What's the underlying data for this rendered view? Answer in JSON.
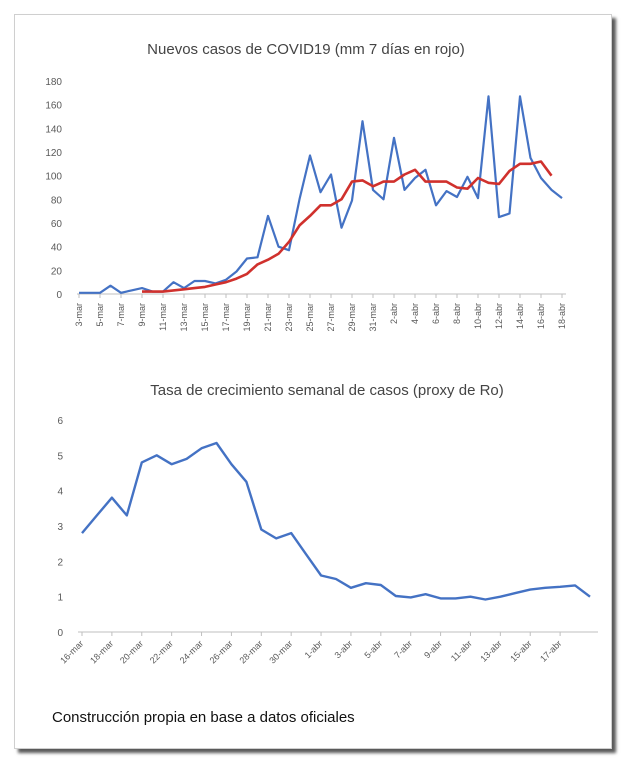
{
  "caption": "Construcción propia en base a datos oficiales",
  "chart_data": [
    {
      "type": "line",
      "title": "Nuevos casos de COVID19 (mm 7 días en rojo)",
      "xlabel": "",
      "ylabel": "",
      "ylim": [
        0,
        180
      ],
      "y_ticks": [
        0,
        20,
        40,
        60,
        80,
        100,
        120,
        140,
        160,
        180
      ],
      "x_tick_labels": [
        "3-mar",
        "5-mar",
        "7-mar",
        "9-mar",
        "11-mar",
        "13-mar",
        "15-mar",
        "17-mar",
        "19-mar",
        "21-mar",
        "23-mar",
        "25-mar",
        "27-mar",
        "29-mar",
        "31-mar",
        "2-abr",
        "4-abr",
        "6-abr",
        "8-abr",
        "10-abr",
        "12-abr",
        "14-abr",
        "16-abr",
        "18-abr"
      ],
      "grid": false,
      "legend": "none",
      "colors": {
        "daily": "#4472c4",
        "moving_avg": "#d0312d"
      },
      "series": [
        {
          "start_index": 0,
          "values": [
            1,
            1,
            1,
            7,
            1,
            3,
            5,
            2,
            2,
            10,
            5,
            11,
            11,
            9,
            12,
            19,
            30,
            31,
            66,
            40,
            37,
            80,
            117,
            86,
            101,
            56,
            79,
            146,
            88,
            80,
            132,
            88,
            98,
            105,
            75,
            87,
            82,
            99,
            81,
            167,
            65,
            68,
            167,
            115,
            98,
            88,
            81
          ]
        },
        {
          "start_index": 6,
          "values": [
            2,
            2,
            2,
            3,
            4,
            5,
            6,
            8,
            10,
            13,
            17,
            25,
            29,
            34,
            44,
            58,
            66,
            75,
            75,
            80,
            95,
            96,
            91,
            95,
            95,
            101,
            105,
            95,
            95,
            95,
            90,
            89,
            98,
            94,
            93,
            104,
            110,
            110,
            112,
            100
          ]
        }
      ]
    },
    {
      "type": "line",
      "title": "Tasa de crecimiento semanal de casos (proxy de Ro)",
      "xlabel": "",
      "ylabel": "",
      "ylim": [
        0,
        6
      ],
      "y_ticks": [
        0,
        1,
        2,
        3,
        4,
        5,
        6
      ],
      "x_tick_labels": [
        "16-mar",
        "18-mar",
        "20-mar",
        "22-mar",
        "24-mar",
        "26-mar",
        "28-mar",
        "30-mar",
        "1-abr",
        "3-abr",
        "5-abr",
        "7-abr",
        "9-abr",
        "11-abr",
        "13-abr",
        "15-abr",
        "17-abr"
      ],
      "grid": false,
      "legend": "none",
      "colors": {
        "line": "#4472c4"
      },
      "series": [
        {
          "values": [
            2.8,
            3.3,
            3.8,
            3.3,
            4.8,
            5.0,
            4.75,
            4.9,
            5.2,
            5.35,
            4.75,
            4.25,
            2.9,
            2.65,
            2.8,
            2.2,
            1.6,
            1.5,
            1.25,
            1.38,
            1.33,
            1.02,
            0.98,
            1.07,
            0.95,
            0.95,
            1.0,
            0.92,
            1.0,
            1.1,
            1.2,
            1.25,
            1.28,
            1.32,
            1.0
          ]
        }
      ]
    }
  ]
}
